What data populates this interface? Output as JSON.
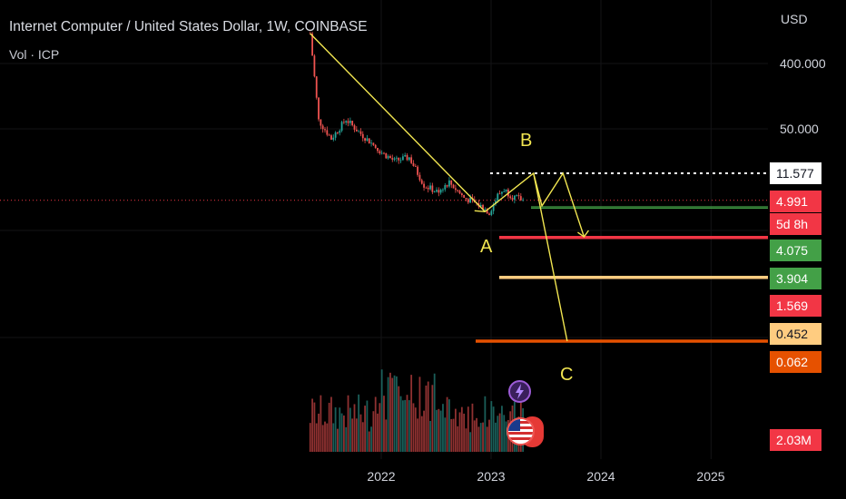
{
  "header": {
    "title": "Internet Computer / United States Dollar, 1W, COINBASE",
    "indicator": "Vol · ICP",
    "currency": "USD"
  },
  "price_axis": {
    "labels": [
      "400.000",
      "50.000"
    ]
  },
  "price_tags": [
    {
      "value": "11.577",
      "bg": "#ffffff",
      "fg": "#131722"
    },
    {
      "value": "4.991",
      "bg": "#f23645",
      "fg": "#ffffff"
    },
    {
      "value": "5d 8h",
      "bg": "#f23645",
      "fg": "#ffffff"
    },
    {
      "value": "4.075",
      "bg": "#43a047",
      "fg": "#ffffff"
    },
    {
      "value": "3.904",
      "bg": "#43a047",
      "fg": "#ffffff"
    },
    {
      "value": "1.569",
      "bg": "#f23645",
      "fg": "#ffffff"
    },
    {
      "value": "0.452",
      "bg": "#ffcc80",
      "fg": "#131722"
    },
    {
      "value": "0.062",
      "bg": "#e65100",
      "fg": "#ffffff"
    },
    {
      "value": "2.03M",
      "bg": "#f23645",
      "fg": "#ffffff"
    }
  ],
  "time_axis": {
    "labels": [
      "2022",
      "2023",
      "2024",
      "2025"
    ]
  },
  "wave_labels": {
    "a": "A",
    "b": "B",
    "c": "C"
  },
  "icons": {
    "flash": "lightning-icon",
    "flag": "us-flag-icon"
  },
  "colors": {
    "up": "#26a69a",
    "down": "#ef5350",
    "drawing": "#f2e651",
    "level_red": "#f23645",
    "level_orange": "#ffcc80",
    "level_deep": "#e65100",
    "level_green": "#43a047"
  },
  "chart_data": {
    "type": "candlestick",
    "symbol": "ICP/USD",
    "interval": "1W",
    "scale": "log",
    "price_range": [
      0.03,
      2000
    ],
    "time_range": [
      "2021-05-10",
      "2025-12-31"
    ],
    "last_price": 4.991,
    "level_lines": [
      {
        "price": 11.577,
        "style": "dotted",
        "color": "#ffffff"
      },
      {
        "price": 4.991,
        "style": "dotted",
        "color": "#f23645"
      },
      {
        "price": 4.075,
        "style": "solid",
        "color": "#43a047"
      },
      {
        "price": 3.904,
        "style": "solid",
        "color": "#43a047"
      },
      {
        "price": 1.569,
        "style": "solid",
        "color": "#f23645"
      },
      {
        "price": 0.452,
        "style": "solid",
        "color": "#ffcc80"
      },
      {
        "price": 0.062,
        "style": "solid",
        "color": "#e65100"
      }
    ],
    "price_path": [
      [
        "2021-05-10",
        900
      ],
      [
        "2021-06-07",
        60
      ],
      [
        "2021-07-19",
        34
      ],
      [
        "2021-09-06",
        62
      ],
      [
        "2021-10-18",
        42
      ],
      [
        "2021-12-06",
        28
      ],
      [
        "2022-01-03",
        22
      ],
      [
        "2022-02-14",
        17
      ],
      [
        "2022-04-04",
        19
      ],
      [
        "2022-05-23",
        8
      ],
      [
        "2022-07-04",
        6.5
      ],
      [
        "2022-08-15",
        8.8
      ],
      [
        "2022-10-03",
        5.4
      ],
      [
        "2022-11-07",
        4.6
      ],
      [
        "2022-12-05",
        4.0
      ],
      [
        "2022-12-26",
        3.4
      ],
      [
        "2023-01-23",
        5.8
      ],
      [
        "2023-02-13",
        7.0
      ],
      [
        "2023-03-13",
        5.6
      ],
      [
        "2023-04-17",
        4.991
      ]
    ],
    "volume_peak": 2030000
  }
}
